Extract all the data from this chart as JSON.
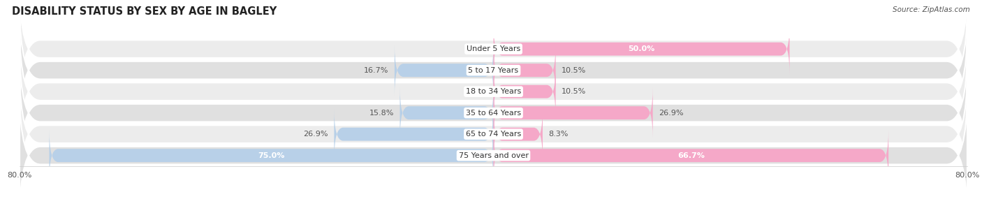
{
  "title": "DISABILITY STATUS BY SEX BY AGE IN BAGLEY",
  "source": "Source: ZipAtlas.com",
  "categories": [
    "Under 5 Years",
    "5 to 17 Years",
    "18 to 34 Years",
    "35 to 64 Years",
    "65 to 74 Years",
    "75 Years and over"
  ],
  "male_values": [
    0.0,
    16.7,
    0.0,
    15.8,
    26.9,
    75.0
  ],
  "female_values": [
    50.0,
    10.5,
    10.5,
    26.9,
    8.3,
    66.7
  ],
  "male_color": "#92b4d4",
  "female_color": "#f07aaa",
  "male_color_light": "#b8d0e8",
  "female_color_light": "#f5a8c8",
  "row_bg_odd": "#ececec",
  "row_bg_even": "#e0e0e0",
  "max_val": 80.0,
  "bar_height": 0.62,
  "title_fontsize": 10.5,
  "label_fontsize": 8,
  "category_fontsize": 8,
  "legend_fontsize": 8.5,
  "axis_label_fontsize": 8
}
